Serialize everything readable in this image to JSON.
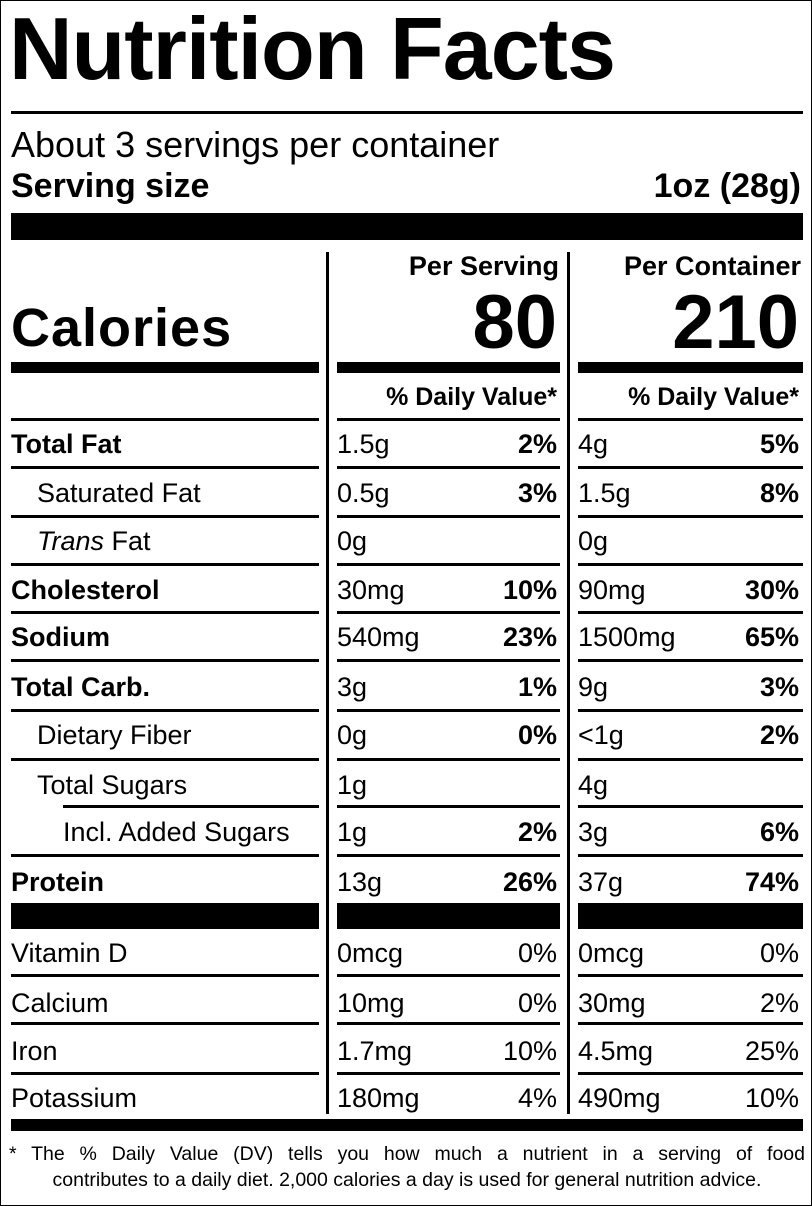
{
  "title": "Nutrition Facts",
  "servings_per_container": "About 3 servings per container",
  "serving_size": {
    "label": "Serving size",
    "value": "1oz (28g)"
  },
  "columns": {
    "per_serving": "Per Serving",
    "per_container": "Per Container",
    "daily_value_header": "% Daily Value*"
  },
  "calories": {
    "label": "Calories",
    "per_serving": "80",
    "per_container": "210"
  },
  "nutrients": [
    {
      "label": "Total Fat",
      "serving_amount": "1.5g",
      "serving_dv": "2%",
      "container_amount": "4g",
      "container_dv": "5%"
    },
    {
      "label": "Saturated Fat",
      "serving_amount": "0.5g",
      "serving_dv": "3%",
      "container_amount": "1.5g",
      "container_dv": "8%"
    },
    {
      "label_italic": "Trans",
      "label": " Fat",
      "serving_amount": "0g",
      "serving_dv": "",
      "container_amount": "0g",
      "container_dv": ""
    },
    {
      "label": "Cholesterol",
      "serving_amount": "30mg",
      "serving_dv": "10%",
      "container_amount": "90mg",
      "container_dv": "30%"
    },
    {
      "label": "Sodium",
      "serving_amount": "540mg",
      "serving_dv": "23%",
      "container_amount": "1500mg",
      "container_dv": "65%"
    },
    {
      "label": "Total Carb.",
      "serving_amount": "3g",
      "serving_dv": "1%",
      "container_amount": "9g",
      "container_dv": "3%"
    },
    {
      "label": "Dietary Fiber",
      "serving_amount": "0g",
      "serving_dv": "0%",
      "container_amount": "<1g",
      "container_dv": "2%"
    },
    {
      "label": "Total Sugars",
      "serving_amount": "1g",
      "serving_dv": "",
      "container_amount": "4g",
      "container_dv": ""
    },
    {
      "label": "Incl. Added Sugars",
      "serving_amount": "1g",
      "serving_dv": "2%",
      "container_amount": "3g",
      "container_dv": "6%"
    },
    {
      "label": "Protein",
      "serving_amount": "13g",
      "serving_dv": "26%",
      "container_amount": "37g",
      "container_dv": "74%"
    }
  ],
  "vitamins": [
    {
      "label": "Vitamin D",
      "serving_amount": "0mcg",
      "serving_dv": "0%",
      "container_amount": "0mcg",
      "container_dv": "0%"
    },
    {
      "label": "Calcium",
      "serving_amount": "10mg",
      "serving_dv": "0%",
      "container_amount": "30mg",
      "container_dv": "2%"
    },
    {
      "label": "Iron",
      "serving_amount": "1.7mg",
      "serving_dv": "10%",
      "container_amount": "4.5mg",
      "container_dv": "25%"
    },
    {
      "label": "Potassium",
      "serving_amount": "180mg",
      "serving_dv": "4%",
      "container_amount": "490mg",
      "container_dv": "10%"
    }
  ],
  "footnote": {
    "line1": "* The % Daily Value (DV) tells you how much a nutrient in a serving of food",
    "line2": "contributes to a daily diet. 2,000 calories a day is used for general nutrition advice."
  }
}
